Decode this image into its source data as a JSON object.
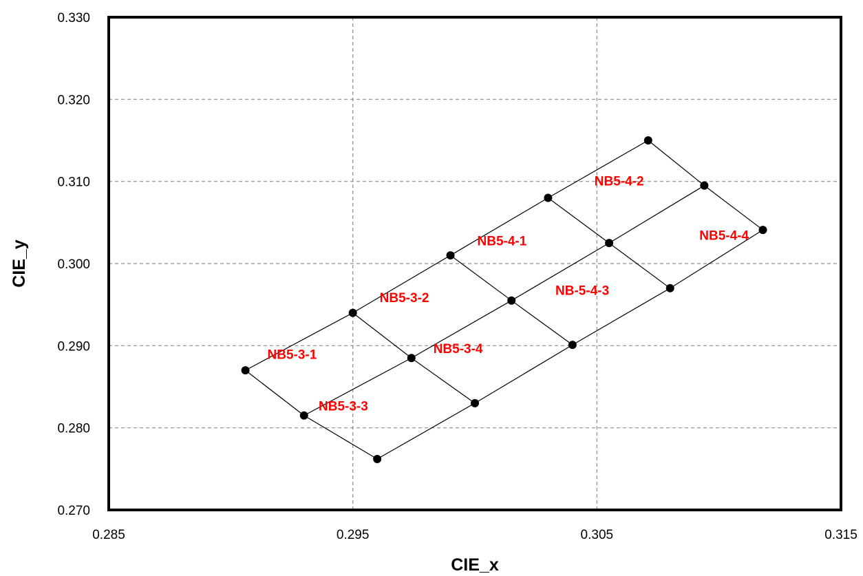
{
  "chart_data": {
    "type": "scatter",
    "title": "",
    "xlabel": "CIE_x",
    "ylabel": "CIE_y",
    "xlim": [
      0.285,
      0.315
    ],
    "ylim": [
      0.27,
      0.33
    ],
    "xticks": [
      "0.285",
      "0.295",
      "0.305",
      "0.315"
    ],
    "yticks": [
      "0.270",
      "0.280",
      "0.290",
      "0.300",
      "0.310",
      "0.320",
      "0.330"
    ],
    "grid": true,
    "legend": "none",
    "points": [
      {
        "x": 0.2906,
        "y": 0.287
      },
      {
        "x": 0.295,
        "y": 0.294
      },
      {
        "x": 0.299,
        "y": 0.301
      },
      {
        "x": 0.303,
        "y": 0.308
      },
      {
        "x": 0.3071,
        "y": 0.315
      },
      {
        "x": 0.293,
        "y": 0.2815
      },
      {
        "x": 0.2974,
        "y": 0.2885
      },
      {
        "x": 0.3015,
        "y": 0.2955
      },
      {
        "x": 0.3055,
        "y": 0.3025
      },
      {
        "x": 0.3094,
        "y": 0.3095
      },
      {
        "x": 0.296,
        "y": 0.2762
      },
      {
        "x": 0.3,
        "y": 0.283
      },
      {
        "x": 0.304,
        "y": 0.2901
      },
      {
        "x": 0.308,
        "y": 0.297
      },
      {
        "x": 0.3118,
        "y": 0.3041
      }
    ],
    "edges": [
      [
        0,
        1
      ],
      [
        1,
        2
      ],
      [
        2,
        3
      ],
      [
        3,
        4
      ],
      [
        5,
        6
      ],
      [
        6,
        7
      ],
      [
        7,
        8
      ],
      [
        8,
        9
      ],
      [
        10,
        11
      ],
      [
        11,
        12
      ],
      [
        12,
        13
      ],
      [
        13,
        14
      ],
      [
        0,
        5
      ],
      [
        5,
        10
      ],
      [
        1,
        6
      ],
      [
        6,
        11
      ],
      [
        2,
        7
      ],
      [
        7,
        12
      ],
      [
        3,
        8
      ],
      [
        8,
        13
      ],
      [
        4,
        9
      ],
      [
        9,
        14
      ]
    ],
    "annotations": [
      {
        "text": "NB5-3-1",
        "x": 0.2915,
        "y": 0.2884
      },
      {
        "text": "NB5-3-2",
        "x": 0.2961,
        "y": 0.2953
      },
      {
        "text": "NB5-3-3",
        "x": 0.2936,
        "y": 0.2821
      },
      {
        "text": "NB5-3-4",
        "x": 0.2983,
        "y": 0.2891
      },
      {
        "text": "NB5-4-1",
        "x": 0.3001,
        "y": 0.3022
      },
      {
        "text": "NB5-4-2",
        "x": 0.3049,
        "y": 0.3095
      },
      {
        "text": "NB-5-4-3",
        "x": 0.3033,
        "y": 0.2962
      },
      {
        "text": "NB5-4-4",
        "x": 0.3092,
        "y": 0.3029
      }
    ],
    "label_color": "#ff0000",
    "point_color": "#000000"
  }
}
